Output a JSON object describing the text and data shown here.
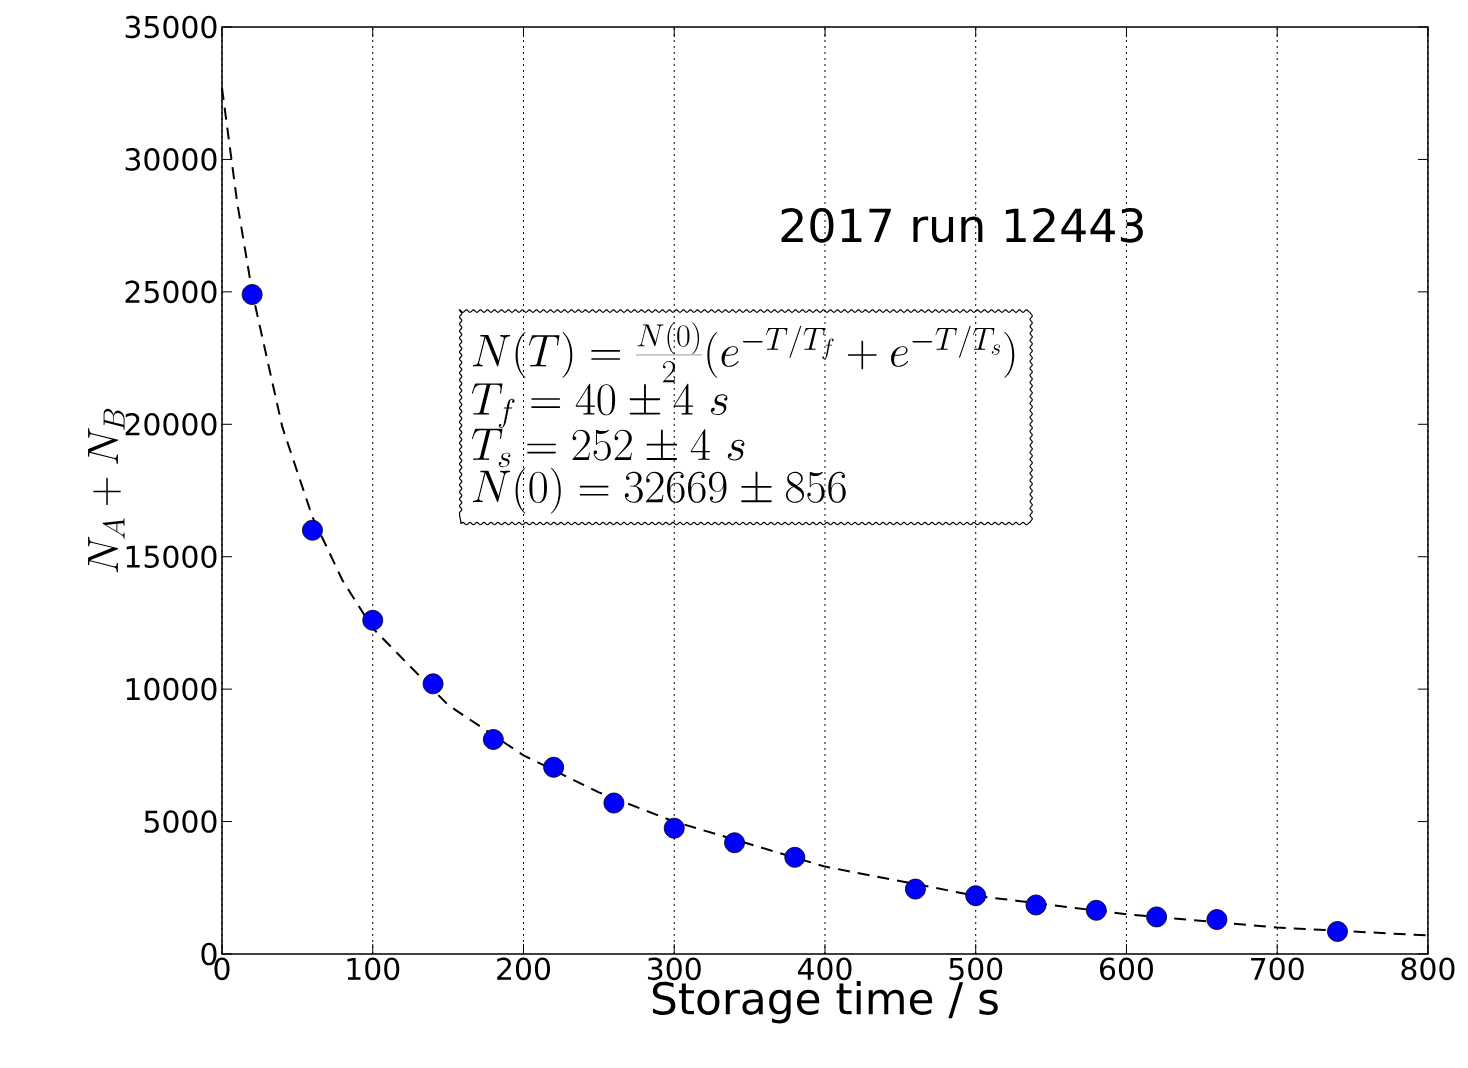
{
  "chart_data": {
    "type": "scatter",
    "xlabel": "Storage time / s",
    "ylabel": "N_A+N_B",
    "xlim": [
      0,
      800
    ],
    "xticks": [
      0,
      100,
      200,
      300,
      400,
      500,
      600,
      700,
      800
    ],
    "ylim": [
      0,
      35000
    ],
    "yticks": [
      0,
      5000,
      10000,
      15000,
      20000,
      25000,
      30000,
      35000
    ],
    "grid": "x",
    "series": [
      {
        "color": "#0000ff",
        "marker": "circle",
        "x": [
          20,
          60,
          100,
          140,
          180,
          220,
          260,
          300,
          340,
          380,
          460,
          500,
          540,
          580,
          620,
          660,
          740
        ],
        "values": [
          24900,
          16000,
          12600,
          10200,
          8100,
          7050,
          5700,
          4750,
          4200,
          3650,
          2450,
          2200,
          1850,
          1650,
          1400,
          1300,
          850
        ]
      },
      {
        "type": "line",
        "color": "#000000",
        "marker": "none",
        "line_style": "dashed",
        "x": [
          0,
          10,
          20,
          40,
          60,
          80,
          100,
          150,
          200,
          250,
          300,
          400,
          500,
          600,
          700,
          800
        ],
        "values": [
          32700,
          28400,
          25000,
          19900,
          16500,
          14100,
          12300,
          9400,
          7500,
          6100,
          5000,
          3300,
          2200,
          1500,
          1000,
          700
        ]
      }
    ],
    "annotations": [
      "2017 run 12443",
      "N(T)=\\frac{N(0)}{2}(e^{-T/T_f}+e^{-T/T_s})",
      "T_f=40\\pm 4\\ s",
      "T_s=252\\pm 4\\ s",
      "N(0)=32669\\pm 856"
    ]
  }
}
